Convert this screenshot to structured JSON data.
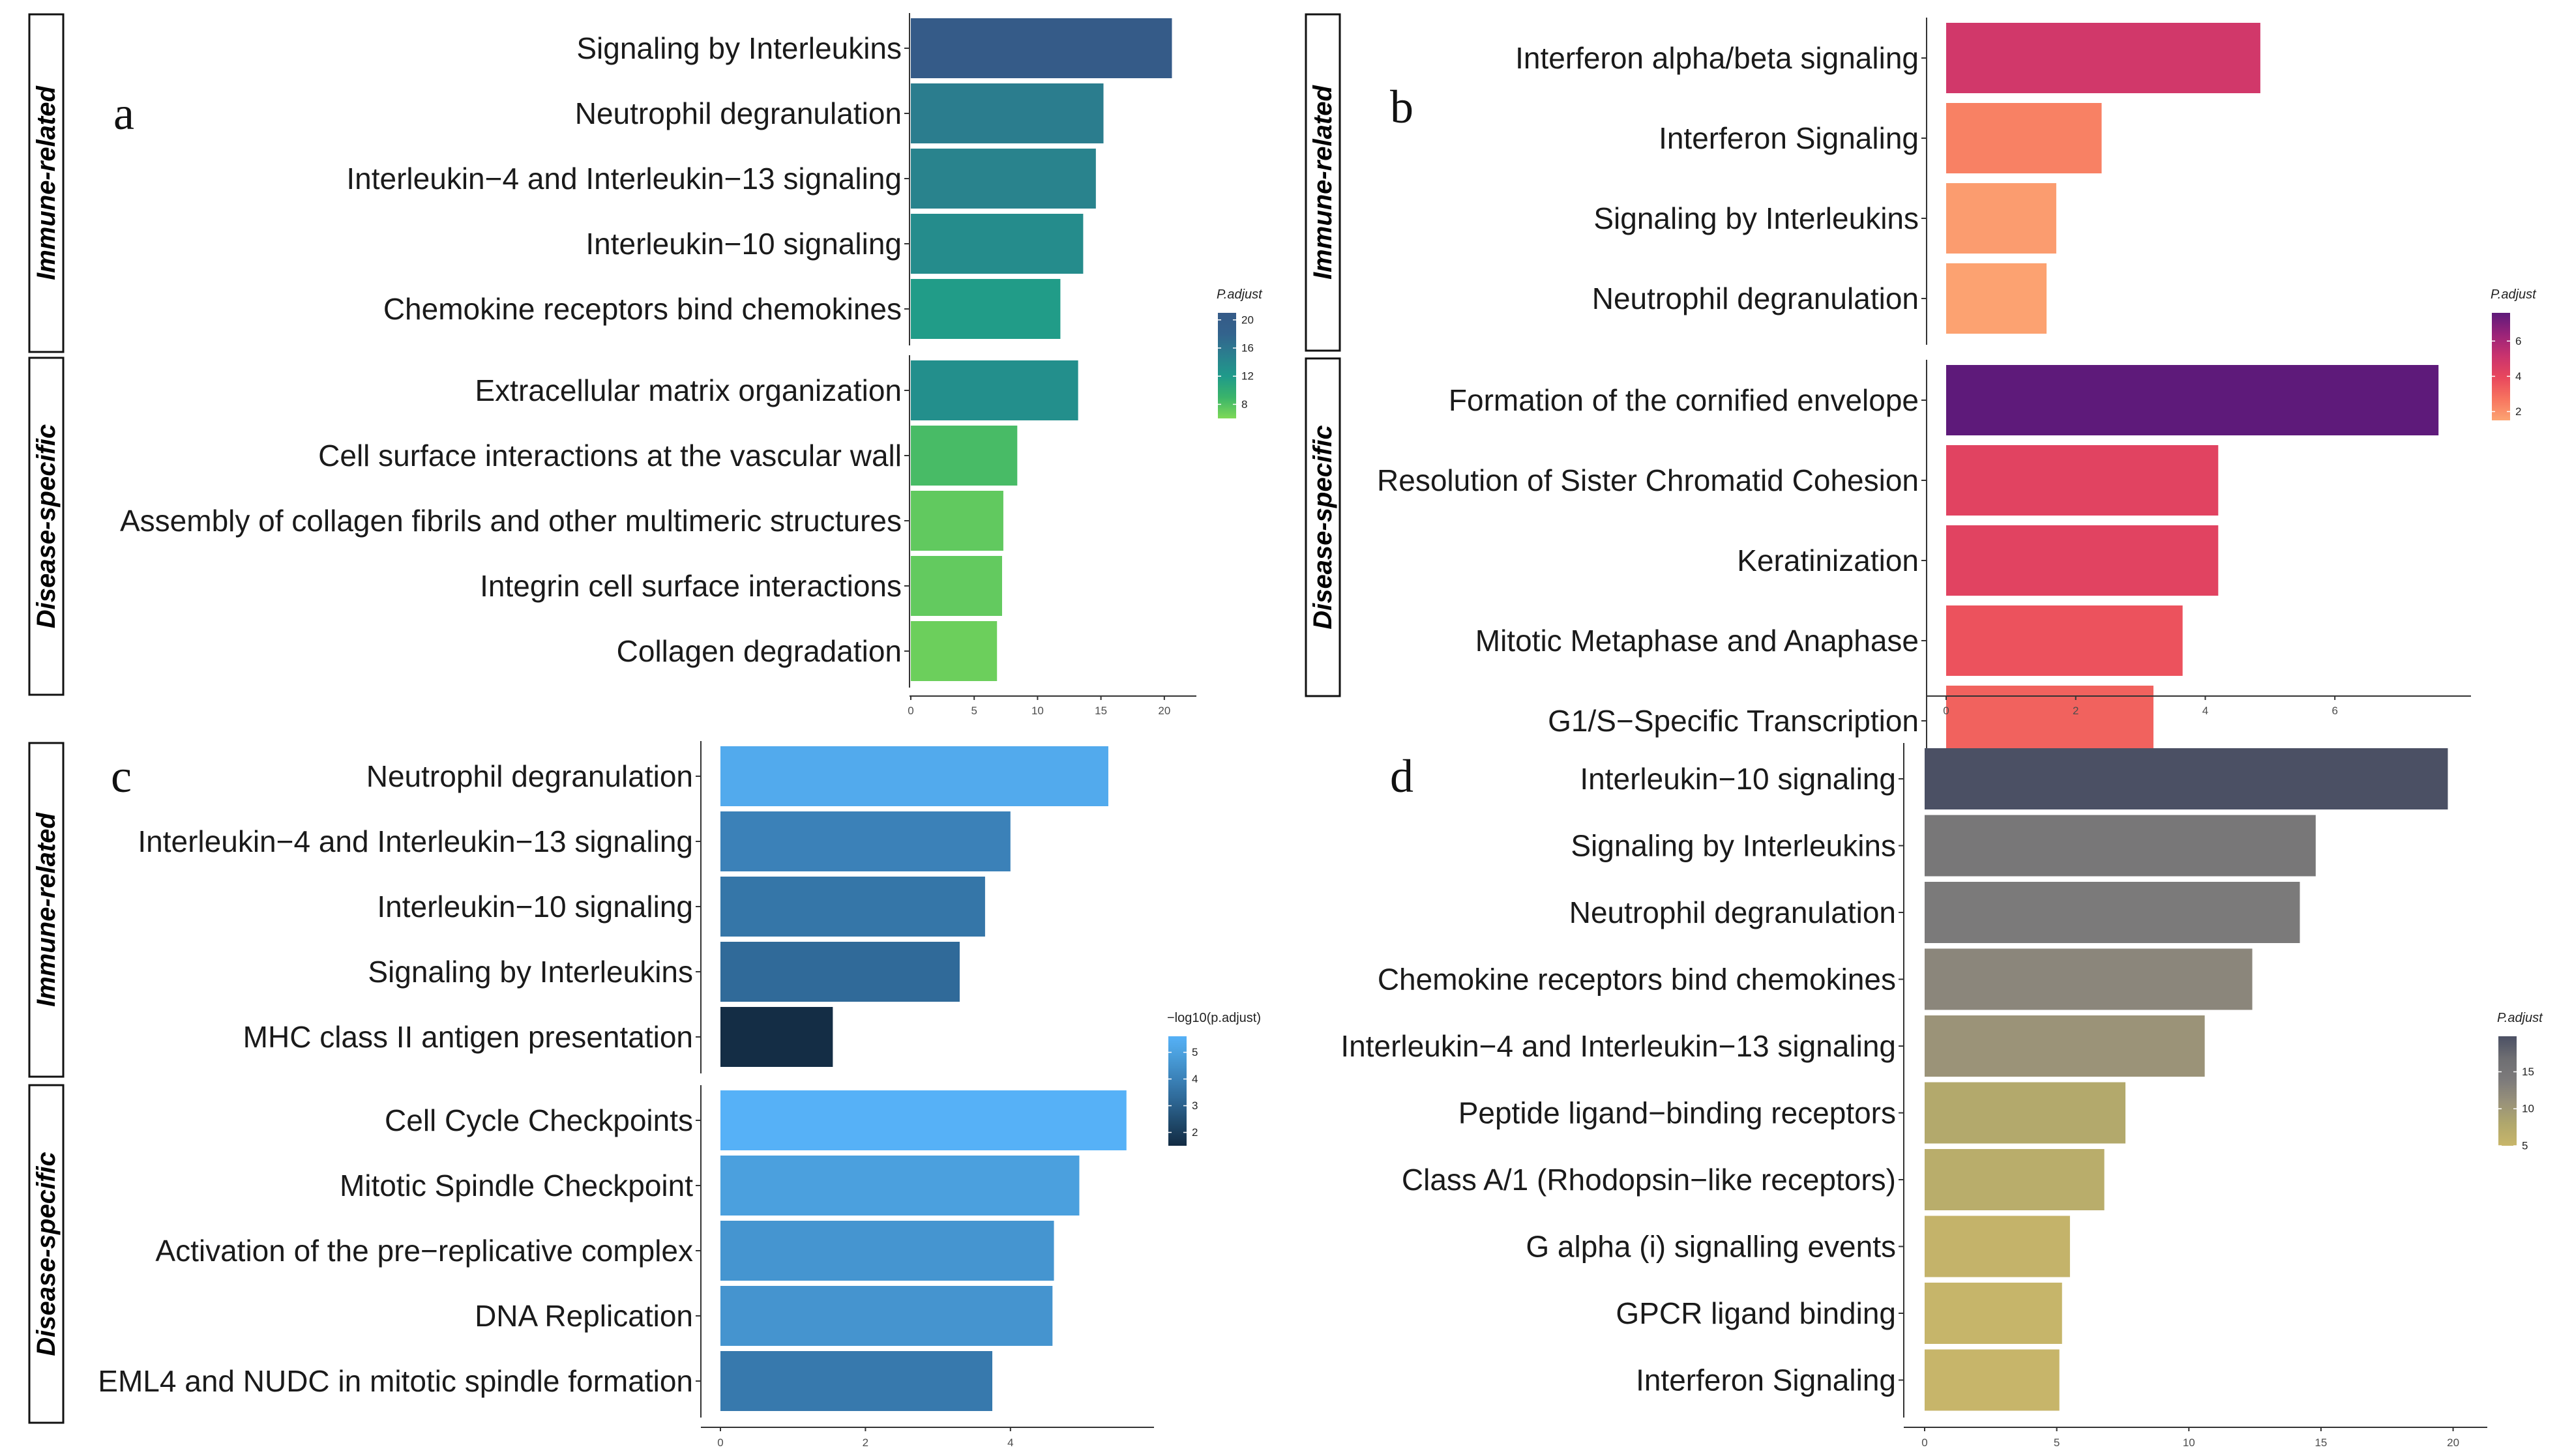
{
  "chart_data": [
    {
      "panel": "a",
      "type": "bar",
      "orientation": "horizontal",
      "groups": [
        {
          "label": "Immune-related",
          "categories": [
            "Signaling by Interleukins",
            "Neutrophil degranulation",
            "Interleukin−4 and Interleukin−13 signaling",
            "Interleukin−10 signaling",
            "Chemokine receptors bind chemokines"
          ],
          "values": [
            20.6,
            15.2,
            14.6,
            13.6,
            11.8
          ]
        },
        {
          "label": "Disease-specific",
          "categories": [
            "Extracellular matrix organization",
            "Cell surface interactions at the vascular wall",
            "Assembly of collagen fibrils and other multimeric structures",
            "Integrin cell surface interactions",
            "Collagen degradation"
          ],
          "values": [
            13.2,
            8.4,
            7.3,
            7.2,
            6.8
          ]
        },
        {
          "label": "",
          "categories": [],
          "values": []
        }
      ],
      "color_values": [
        [
          20.6,
          15.2,
          14.6,
          13.6,
          11.8
        ],
        [
          13.2,
          8.4,
          7.3,
          7.2,
          6.8
        ],
        []
      ],
      "xlim": [
        0,
        21.5
      ],
      "xticks": [
        0,
        5,
        10,
        15,
        20
      ],
      "legend": {
        "title": "P.adjust",
        "ticks": [
          20,
          16,
          12,
          8
        ],
        "range": [
          6,
          21
        ],
        "colors": [
          "#7ed957",
          "#3ab46a",
          "#1f9a8a",
          "#2a7f8e",
          "#33638d",
          "#355a87"
        ]
      }
    },
    {
      "panel": "b",
      "type": "bar",
      "orientation": "horizontal",
      "groups": [
        {
          "label": "Immune-related",
          "categories": [
            "Interferon alpha/beta signaling",
            "Interferon Signaling",
            "Signaling by Interleukins",
            "Neutrophil degranulation"
          ],
          "values": [
            4.85,
            2.4,
            1.7,
            1.55
          ]
        },
        {
          "label": "Disease-specific",
          "categories": [
            "Formation of the cornified envelope",
            "Resolution of Sister Chromatid Cohesion",
            "Keratinization",
            "Mitotic Metaphase and Anaphase",
            "G1/S−Specific Transcription"
          ],
          "values": [
            7.6,
            4.2,
            4.2,
            3.65,
            3.2
          ]
        },
        {
          "label": "",
          "categories": [],
          "values": []
        }
      ],
      "color_values": [
        [
          4.85,
          2.4,
          1.7,
          1.55
        ],
        [
          7.6,
          4.2,
          4.2,
          3.65,
          3.2
        ],
        []
      ],
      "xlim": [
        0,
        7.9
      ],
      "xticks": [
        0,
        2,
        4,
        6
      ],
      "legend": {
        "title": "P.adjust",
        "ticks": [
          6,
          4,
          2
        ],
        "range": [
          1.5,
          7.6
        ],
        "colors": [
          "#fca472",
          "#f7745f",
          "#e8475d",
          "#c9336e",
          "#9a2379",
          "#5e1a7a"
        ]
      }
    },
    {
      "panel": "c",
      "type": "bar",
      "orientation": "horizontal",
      "groups": [
        {
          "label": "Immune-related",
          "categories": [
            "Neutrophil degranulation",
            "Interleukin−4 and Interleukin−13 signaling",
            "Interleukin−10 signaling",
            "Signaling by Interleukins",
            "MHC class II antigen presentation"
          ],
          "values": [
            5.35,
            4.0,
            3.65,
            3.3,
            1.55
          ]
        },
        {
          "label": "Disease-specific",
          "categories": [
            "Cell Cycle Checkpoints",
            "Mitotic Spindle Checkpoint",
            "Activation of the pre−replicative complex",
            "DNA Replication",
            "EML4 and NUDC in mitotic spindle formation"
          ],
          "values": [
            5.6,
            4.95,
            4.6,
            4.58,
            3.75
          ]
        },
        {
          "label": "",
          "categories": [],
          "values": []
        }
      ],
      "color_values": [
        [
          5.35,
          4.0,
          3.65,
          3.3,
          1.55
        ],
        [
          5.6,
          4.95,
          4.6,
          4.58,
          3.75
        ],
        []
      ],
      "xlim": [
        0,
        5.8
      ],
      "xticks": [
        0,
        2,
        4
      ],
      "legend": {
        "title": "−log10(p.adjust)",
        "ticks": [
          5,
          4,
          3,
          2
        ],
        "range": [
          1.5,
          5.6
        ],
        "colors": [
          "#132b43",
          "#1f4869",
          "#2d6592",
          "#3a80b6",
          "#489bd7",
          "#56b1f7"
        ]
      }
    },
    {
      "panel": "d",
      "type": "bar",
      "orientation": "horizontal",
      "groups": [
        {
          "label": "",
          "categories": [
            "Interleukin−10 signaling",
            "Signaling by Interleukins",
            "Neutrophil degranulation",
            "Chemokine receptors bind chemokines",
            "Interleukin−4 and Interleukin−13 signaling",
            "Peptide ligand−binding receptors",
            "Class A/1 (Rhodopsin−like receptors)",
            "G alpha (i) signalling events",
            "GPCR ligand binding",
            "Interferon Signaling"
          ],
          "values": [
            19.8,
            14.8,
            14.2,
            12.4,
            10.6,
            7.6,
            6.8,
            5.5,
            5.2,
            5.1
          ]
        },
        {
          "label": "",
          "categories": [],
          "values": []
        },
        {
          "label": "",
          "categories": [],
          "values": []
        }
      ],
      "color_values": [
        [
          19.8,
          14.8,
          14.2,
          12.4,
          10.6,
          7.6,
          6.8,
          5.5,
          5.2,
          5.1
        ],
        [],
        []
      ],
      "xlim": [
        0,
        20.8
      ],
      "xticks": [
        0,
        5,
        10,
        15,
        20
      ],
      "legend": {
        "title": "P.adjust",
        "ticks": [
          15,
          10,
          5
        ],
        "range": [
          5,
          19.8
        ],
        "colors": [
          "#c8b66a",
          "#b0a76c",
          "#98917a",
          "#7d7b7b",
          "#6e6e72",
          "#4b5064"
        ]
      }
    }
  ]
}
